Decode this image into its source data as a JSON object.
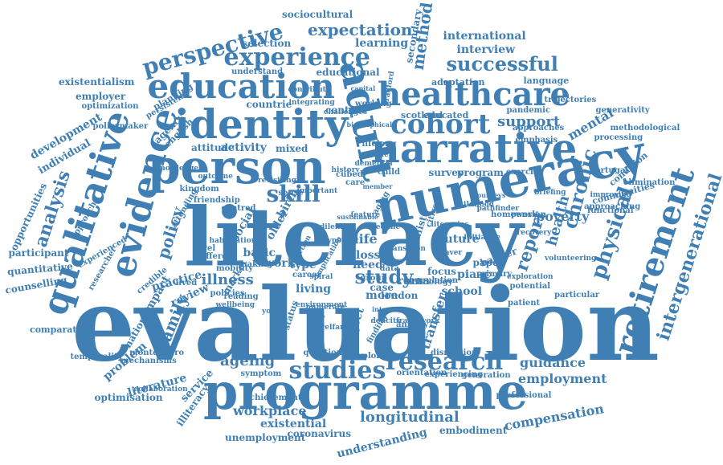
{
  "accent_color": "#3f7fb4",
  "words": [
    "evaluation",
    "literacy",
    "numeracy",
    "programme",
    "narrative",
    "healthcare",
    "identity",
    "person",
    "education",
    "adult",
    "qualitative",
    "evidence",
    "retirement",
    "experience",
    "perspective",
    "cohort",
    "research",
    "studies",
    "successful",
    "expectation",
    "skill",
    "intergenerational",
    "physical",
    "chronic",
    "report",
    "health",
    "longitudinal",
    "compensation",
    "analysis",
    "policy",
    "guidance",
    "employment",
    "support",
    "poverty",
    "ageing",
    "family",
    "illness",
    "study",
    "method",
    "understanding",
    "workplace",
    "existential",
    "coronavirus",
    "unemployment",
    "international",
    "interview",
    "sociocultural",
    "learning",
    "selection",
    "secondary",
    "educational",
    "understand",
    "existentialism",
    "employer",
    "development",
    "individual",
    "opportunities",
    "participant",
    "quantitative",
    "counselling",
    "comparative",
    "temporality",
    "problem",
    "literature",
    "optimisation",
    "service",
    "illiteracy",
    "mental",
    "processing",
    "generativity",
    "language",
    "adaptation",
    "mixed",
    "activity",
    "attitude",
    "countrie",
    "context",
    "lifelong",
    "survey",
    "program",
    "exercise",
    "condition",
    "elimination",
    "functional",
    "particular",
    "barrier",
    "paper",
    "future",
    "life",
    "loss",
    "need",
    "piaac",
    "roma",
    "london",
    "school",
    "focus",
    "data",
    "basic",
    "work",
    "living",
    "type",
    "impact",
    "practice",
    "review",
    "national",
    "credible",
    "agency",
    "english",
    "planning",
    "persistent",
    "educated",
    "scotland",
    "working",
    "pandemic",
    "trajectories",
    "approaches",
    "emphasis",
    "methodological",
    "bradford",
    "kingdom",
    "market",
    "reading",
    "mobility",
    "policies",
    "centred",
    "social",
    "older",
    "birth",
    "child",
    "more",
    "case",
    "question",
    "orientation",
    "experiencing",
    "generation",
    "professional",
    "embodiment",
    "achievement",
    "symptom",
    "mechanisms",
    "montenegro",
    "exploring",
    "disruption",
    "transfer",
    "sample",
    "primary",
    "potential",
    "patient",
    "pension",
    "homework",
    "approach",
    "researcher",
    "experienced",
    "optimization",
    "policymaker",
    "different",
    "sense",
    "care",
    "group",
    "making",
    "friendship",
    "attending",
    "deficits",
    "environment",
    "framework",
    "citizen",
    "dementia",
    "provide",
    "member",
    "cubed",
    "aging",
    "lived",
    "wellbeing",
    "portugal",
    "communities",
    "exploration",
    "improving",
    "approaching",
    "briefing",
    "pathfinder",
    "recovery",
    "population",
    "project",
    "finding",
    "technology",
    "career",
    "realist",
    "level",
    "initiative",
    "status",
    "outcome",
    "knowledge",
    "habituation",
    "collaboration",
    "capital",
    "biographical",
    "integrating",
    "contribute",
    "important",
    "history",
    "leaver",
    "typology",
    "decline",
    "society",
    "anxiety",
    "challenges",
    "childhood",
    "dilemma",
    "feature",
    "function",
    "implication",
    "literacies",
    "transition",
    "welfare",
    "youth",
    "volunteering",
    "revisiting",
    "journeys",
    "numerate",
    "spiral",
    "sustainable",
    "interaction"
  ]
}
